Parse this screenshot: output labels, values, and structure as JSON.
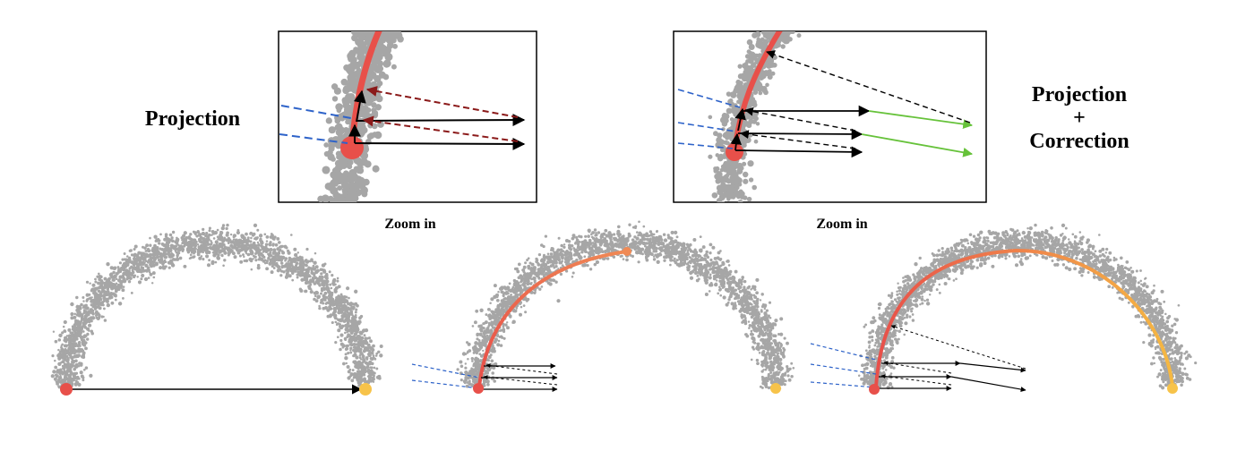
{
  "labels": {
    "left_title": "Projection",
    "right_title_line1": "Projection",
    "right_title_line2": "+",
    "right_title_line3": "Correction",
    "zoom_left": "Zoom in",
    "zoom_right": "Zoom in"
  },
  "colors": {
    "point_cloud": "#a6a6a6",
    "path_start": "#e8504a",
    "path_end": "#f5b942",
    "start_point": "#e8504a",
    "end_point": "#f7c34a",
    "projection_arrow": "#000000",
    "projection_dashed": "#8b1a1a",
    "normal_dashed": "#2e63c9",
    "correction_arrow": "#66c23a",
    "box_border": "#000000"
  }
}
